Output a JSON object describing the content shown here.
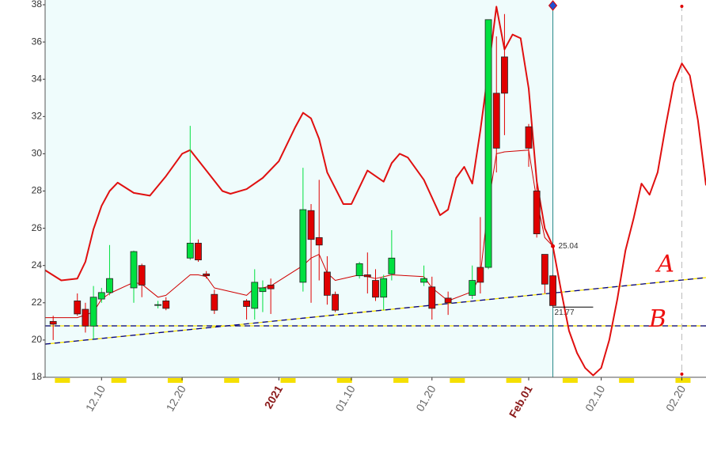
{
  "chart_data": {
    "type": "candlestick",
    "x": [
      "2020-12-04",
      "2020-12-07",
      "2020-12-08",
      "2020-12-09",
      "2020-12-10",
      "2020-12-11",
      "2020-12-14",
      "2020-12-15",
      "2020-12-17",
      "2020-12-18",
      "2020-12-21",
      "2020-12-22",
      "2020-12-23",
      "2020-12-24",
      "2020-12-28",
      "2020-12-29",
      "2020-12-30",
      "2020-12-31",
      "2021-01-04",
      "2021-01-05",
      "2021-01-06",
      "2021-01-07",
      "2021-01-08",
      "2021-01-11",
      "2021-01-12",
      "2021-01-13",
      "2021-01-14",
      "2021-01-15",
      "2021-01-19",
      "2021-01-20",
      "2021-01-22",
      "2021-01-25",
      "2021-01-26",
      "2021-01-27",
      "2021-01-28",
      "2021-01-29",
      "2021-02-01",
      "2021-02-02",
      "2021-02-03",
      "2021-02-04"
    ],
    "open": [
      21.0,
      22.1,
      21.65,
      20.75,
      22.2,
      22.55,
      22.8,
      24.0,
      21.9,
      22.1,
      24.4,
      25.2,
      23.55,
      22.45,
      22.1,
      21.7,
      22.6,
      22.95,
      23.1,
      26.95,
      25.5,
      23.65,
      22.45,
      23.45,
      23.5,
      23.2,
      22.3,
      23.55,
      23.1,
      22.85,
      22.25,
      22.4,
      23.9,
      23.9,
      33.25,
      35.2,
      31.45,
      28.0,
      24.6,
      23.45
    ],
    "high": [
      21.3,
      22.5,
      22.0,
      22.9,
      22.8,
      25.1,
      24.8,
      24.1,
      22.1,
      22.3,
      31.5,
      25.4,
      23.7,
      22.7,
      22.2,
      23.8,
      23.2,
      23.3,
      29.25,
      27.3,
      28.6,
      24.5,
      22.6,
      24.2,
      24.7,
      23.8,
      23.5,
      25.9,
      24.0,
      23.4,
      22.6,
      24.0,
      26.6,
      37.2,
      36.3,
      37.5,
      31.6,
      28.4,
      24.6,
      23.5
    ],
    "low": [
      20.0,
      21.3,
      20.4,
      20.05,
      22.0,
      22.4,
      22.0,
      22.3,
      21.7,
      21.6,
      24.3,
      24.2,
      23.3,
      21.4,
      21.1,
      21.1,
      21.5,
      21.4,
      22.6,
      22.0,
      23.2,
      21.9,
      21.5,
      23.3,
      22.5,
      22.1,
      21.6,
      23.2,
      22.9,
      21.1,
      21.35,
      22.2,
      22.5,
      23.8,
      29.0,
      31.0,
      29.3,
      25.5,
      22.5,
      21.77
    ],
    "close": [
      20.85,
      21.4,
      20.75,
      22.3,
      22.55,
      23.3,
      24.75,
      22.95,
      21.9,
      21.7,
      25.2,
      24.3,
      23.45,
      21.6,
      21.8,
      23.1,
      22.8,
      22.75,
      27.0,
      25.4,
      25.1,
      22.4,
      21.6,
      24.1,
      23.4,
      22.3,
      23.3,
      24.4,
      23.3,
      21.7,
      22.0,
      23.2,
      23.1,
      37.2,
      30.3,
      33.25,
      30.3,
      25.7,
      23.0,
      21.85
    ],
    "up_color": "#00e040",
    "down_color": "#e00000",
    "series": [
      {
        "color": "#e01010",
        "width": 2,
        "x": [
          "2020-12-03",
          "2020-12-05",
          "2020-12-07",
          "2020-12-08",
          "2020-12-09",
          "2020-12-10",
          "2020-12-11",
          "2020-12-12",
          "2020-12-14",
          "2020-12-16",
          "2020-12-18",
          "2020-12-20",
          "2020-12-21",
          "2020-12-23",
          "2020-12-25",
          "2020-12-26",
          "2020-12-28",
          "2020-12-30",
          "2021-01-01",
          "2021-01-03",
          "2021-01-04",
          "2021-01-05",
          "2021-01-06",
          "2021-01-07",
          "2021-01-09",
          "2021-01-10",
          "2021-01-12",
          "2021-01-14",
          "2021-01-15",
          "2021-01-16",
          "2021-01-17",
          "2021-01-19",
          "2021-01-21",
          "2021-01-22",
          "2021-01-23",
          "2021-01-24",
          "2021-01-25",
          "2021-01-26",
          "2021-01-27",
          "2021-01-28",
          "2021-01-29",
          "2021-01-30",
          "2021-01-31",
          "2021-02-01",
          "2021-02-02",
          "2021-02-03",
          "2021-02-04",
          "2021-02-05",
          "2021-02-06",
          "2021-02-07",
          "2021-02-08",
          "2021-02-09",
          "2021-02-10",
          "2021-02-11",
          "2021-02-12",
          "2021-02-13",
          "2021-02-14",
          "2021-02-15",
          "2021-02-16",
          "2021-02-17",
          "2021-02-18",
          "2021-02-19",
          "2021-02-20",
          "2021-02-21",
          "2021-02-22",
          "2021-02-23"
        ],
        "values": [
          23.75,
          23.2,
          23.3,
          24.2,
          25.95,
          27.2,
          28.0,
          28.45,
          27.9,
          27.75,
          28.8,
          30.0,
          30.2,
          29.1,
          28.0,
          27.85,
          28.1,
          28.7,
          29.6,
          31.4,
          32.2,
          31.9,
          30.8,
          29.0,
          27.3,
          27.3,
          29.1,
          28.5,
          29.5,
          30.0,
          29.8,
          28.6,
          26.7,
          27.0,
          28.7,
          29.3,
          28.4,
          31.25,
          34.5,
          37.9,
          35.6,
          36.4,
          36.2,
          33.5,
          28.5,
          26.0,
          25.04,
          22.7,
          20.5,
          19.3,
          18.5,
          18.1,
          18.5,
          20.0,
          22.2,
          24.8,
          26.5,
          28.4,
          27.8,
          29.0,
          31.5,
          33.8,
          34.85,
          34.2,
          31.8,
          28.3
        ]
      },
      {
        "color": "#d00000",
        "width": 1,
        "x": [
          "2020-12-03",
          "2020-12-07",
          "2020-12-09",
          "2020-12-10",
          "2020-12-11",
          "2020-12-14",
          "2020-12-15",
          "2020-12-17",
          "2020-12-18",
          "2020-12-21",
          "2020-12-22",
          "2020-12-23",
          "2020-12-24",
          "2020-12-28",
          "2020-12-29",
          "2020-12-30",
          "2020-12-31",
          "2021-01-04",
          "2021-01-05",
          "2021-01-06",
          "2021-01-07",
          "2021-01-08",
          "2021-01-11",
          "2021-01-12",
          "2021-01-13",
          "2021-01-14",
          "2021-01-15",
          "2021-01-19",
          "2021-01-20",
          "2021-01-22",
          "2021-01-25",
          "2021-01-26",
          "2021-01-27",
          "2021-01-28",
          "2021-01-29",
          "2021-02-01",
          "2021-02-02",
          "2021-02-03",
          "2021-02-04"
        ],
        "values": [
          21.2,
          21.2,
          21.5,
          22.2,
          22.5,
          23.1,
          23.0,
          22.3,
          22.4,
          23.5,
          23.5,
          23.4,
          22.8,
          22.4,
          22.8,
          22.8,
          22.9,
          24.0,
          24.4,
          24.6,
          23.6,
          23.2,
          23.5,
          23.4,
          23.3,
          23.4,
          23.5,
          23.4,
          22.8,
          22.1,
          22.6,
          23.5,
          27.3,
          30.0,
          30.1,
          30.2,
          27.5,
          25.5,
          25.04
        ]
      }
    ],
    "trendline": {
      "x": [
        "2020-12-03",
        "2021-02-23"
      ],
      "values": [
        19.78,
        23.35
      ],
      "color": "#00008b"
    },
    "hline": {
      "value": 20.76,
      "color": "#00008b"
    },
    "level": {
      "x": [
        "2021-02-04",
        "2021-02-09"
      ],
      "value": 21.77
    },
    "marker": {
      "x": "2021-02-04",
      "value": 25.04,
      "color": "#e00000"
    },
    "vlines": [
      {
        "x": "2021-02-04",
        "color": "#2a8a8a"
      },
      {
        "x": "2021-02-20",
        "color": "#bbbbbb",
        "dashed": true
      }
    ],
    "shade_color": "#effcfc",
    "annotations": [
      {
        "text": "A",
        "x": "2021-02-18",
        "value": 24.0
      },
      {
        "text": "B",
        "x": "2021-02-17",
        "value": 21.05
      }
    ],
    "annotation_color": "#ee1111",
    "xlim": [
      "2020-12-03",
      "2021-02-23"
    ],
    "ylim": [
      18,
      38
    ],
    "yticks": [
      18,
      20,
      22,
      24,
      26,
      28,
      30,
      32,
      34,
      36,
      38
    ],
    "xticks": [
      {
        "value": "2020-12-10",
        "label": "12.10"
      },
      {
        "value": "2020-12-20",
        "label": "12.20"
      },
      {
        "value": "2021-01-01",
        "label": "2021"
      },
      {
        "value": "2021-01-10",
        "label": "01.10"
      },
      {
        "value": "2021-01-20",
        "label": "01.20"
      },
      {
        "value": "2021-02-01",
        "label": "Feb.01"
      },
      {
        "value": "2021-02-10",
        "label": "02.10"
      },
      {
        "value": "2021-02-20",
        "label": "02.20"
      }
    ],
    "month_start_color": "#8b1a1a",
    "weekend_color": "#f5e000"
  }
}
